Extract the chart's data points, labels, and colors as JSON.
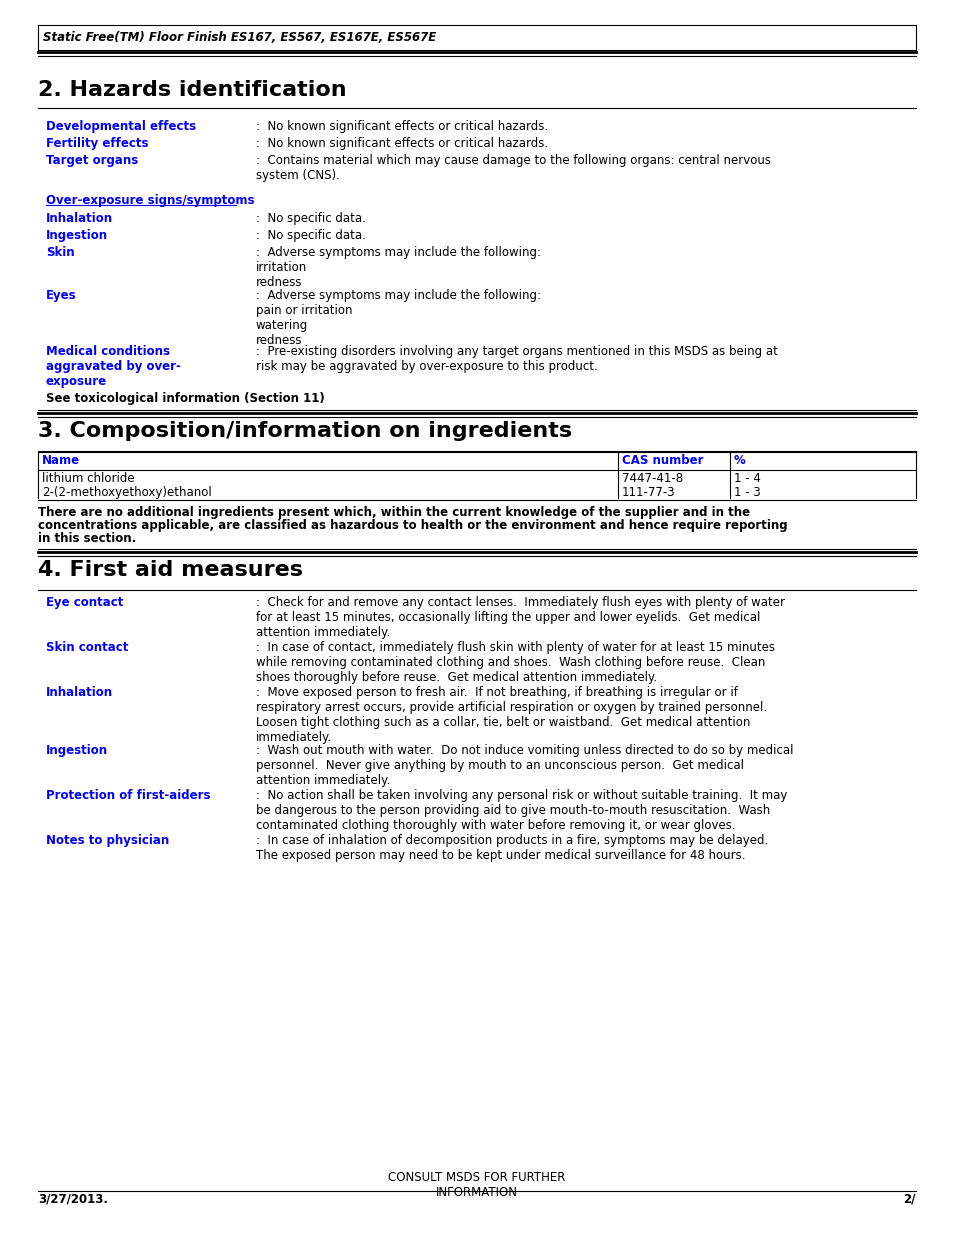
{
  "header_italic": "Static Free(TM) Floor Finish ES167, ES567, ES167E, ES567E",
  "section2_title": "2. Hazards identification",
  "section3_title": "3. Composition/information on ingredients",
  "section4_title": "4. First aid measures",
  "blue": "#0000FF",
  "black": "#000000",
  "bg": "#FFFFFF",
  "footer_left": "3/27/2013.",
  "footer_center": "CONSULT MSDS FOR FURTHER\nINFORMATION",
  "footer_right": "2/",
  "section2_items": [
    {
      "label": "Developmental effects",
      "text": ":  No known significant effects or critical hazards."
    },
    {
      "label": "Fertility effects",
      "text": ":  No known significant effects or critical hazards."
    },
    {
      "label": "Target organs",
      "text": ":  Contains material which may cause damage to the following organs: central nervous\nsystem (CNS)."
    }
  ],
  "overexposure_header": "Over-exposure signs/symptoms",
  "overexposure_items": [
    {
      "label": "Inhalation",
      "text": ":  No specific data."
    },
    {
      "label": "Ingestion",
      "text": ":  No specific data."
    },
    {
      "label": "Skin",
      "text": ":  Adverse symptoms may include the following:\nirritation\nredness"
    },
    {
      "label": "Eyes",
      "text": ":  Adverse symptoms may include the following:\npain or irritation\nwatering\nredness"
    },
    {
      "label": "Medical conditions\naggravated by over-\nexposure",
      "text": ":  Pre-existing disorders involving any target organs mentioned in this MSDS as being at\nrisk may be aggravated by over-exposure to this product."
    }
  ],
  "see_toxico": "See toxicological information (Section 11)",
  "table_headers": [
    "Name",
    "CAS number",
    "%"
  ],
  "table_rows": [
    [
      "lithium chloride",
      "7447-41-8",
      "1 - 4"
    ],
    [
      "2-(2-methoxyethoxy)ethanol",
      "111-77-3",
      "1 - 3"
    ]
  ],
  "table_note": "There are no additional ingredients present which, within the current knowledge of the supplier and in the\nconcentrations applicable, are classified as hazardous to health or the environment and hence require reporting\nin this section.",
  "section4_items": [
    {
      "label": "Eye contact",
      "text": ":  Check for and remove any contact lenses.  Immediately flush eyes with plenty of water\nfor at least 15 minutes, occasionally lifting the upper and lower eyelids.  Get medical\nattention immediately."
    },
    {
      "label": "Skin contact",
      "text": ":  In case of contact, immediately flush skin with plenty of water for at least 15 minutes\nwhile removing contaminated clothing and shoes.  Wash clothing before reuse.  Clean\nshoes thoroughly before reuse.  Get medical attention immediately."
    },
    {
      "label": "Inhalation",
      "text": ":  Move exposed person to fresh air.  If not breathing, if breathing is irregular or if\nrespiratory arrest occurs, provide artificial respiration or oxygen by trained personnel.\nLoosen tight clothing such as a collar, tie, belt or waistband.  Get medical attention\nimmediately."
    },
    {
      "label": "Ingestion",
      "text": ":  Wash out mouth with water.  Do not induce vomiting unless directed to do so by medical\npersonnel.  Never give anything by mouth to an unconscious person.  Get medical\nattention immediately."
    },
    {
      "label": "Protection of first-aiders",
      "text": ":  No action shall be taken involving any personal risk or without suitable training.  It may\nbe dangerous to the person providing aid to give mouth-to-mouth resuscitation.  Wash\ncontaminated clothing thoroughly with water before removing it, or wear gloves."
    },
    {
      "label": "Notes to physician",
      "text": ":  In case of inhalation of decomposition products in a fire, symptoms may be delayed.\nThe exposed person may need to be kept under medical surveillance for 48 hours."
    }
  ]
}
